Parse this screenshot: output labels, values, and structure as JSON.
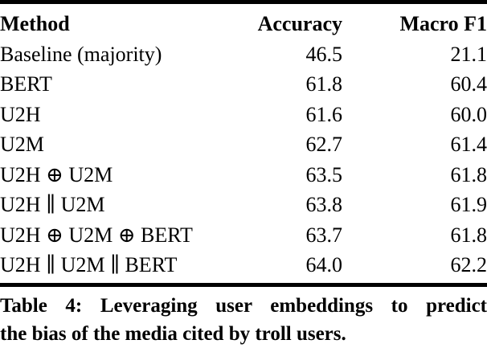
{
  "table": {
    "columns": {
      "method": "Method",
      "accuracy": "Accuracy",
      "macro_f1": "Macro F1"
    },
    "rows": [
      {
        "method": "Baseline (majority)",
        "accuracy": "46.5",
        "macro_f1": "21.1"
      },
      {
        "method": "BERT",
        "accuracy": "61.8",
        "macro_f1": "60.4"
      },
      {
        "method": "U2H",
        "accuracy": "61.6",
        "macro_f1": "60.0"
      },
      {
        "method": "U2M",
        "accuracy": "62.7",
        "macro_f1": "61.4"
      },
      {
        "method": "U2H ⊕ U2M",
        "accuracy": "63.5",
        "macro_f1": "61.8"
      },
      {
        "method": "U2H ∥ U2M",
        "accuracy": "63.8",
        "macro_f1": "61.9"
      },
      {
        "method": "U2H ⊕ U2M ⊕ BERT",
        "accuracy": "63.7",
        "macro_f1": "61.8"
      },
      {
        "method": "U2H ∥ U2M ∥ BERT",
        "accuracy": "64.0",
        "macro_f1": "62.2"
      }
    ]
  },
  "caption": {
    "label": "Table 4:",
    "line1": "Table 4: Leveraging user embeddings to predict",
    "line2": "the bias of the media cited by troll users.",
    "full_text": "Table 4: Leveraging user embeddings to predict the bias of the media cited by troll users."
  },
  "colors": {
    "text": "#000000",
    "background": "#ffffff",
    "rule": "#000000"
  }
}
